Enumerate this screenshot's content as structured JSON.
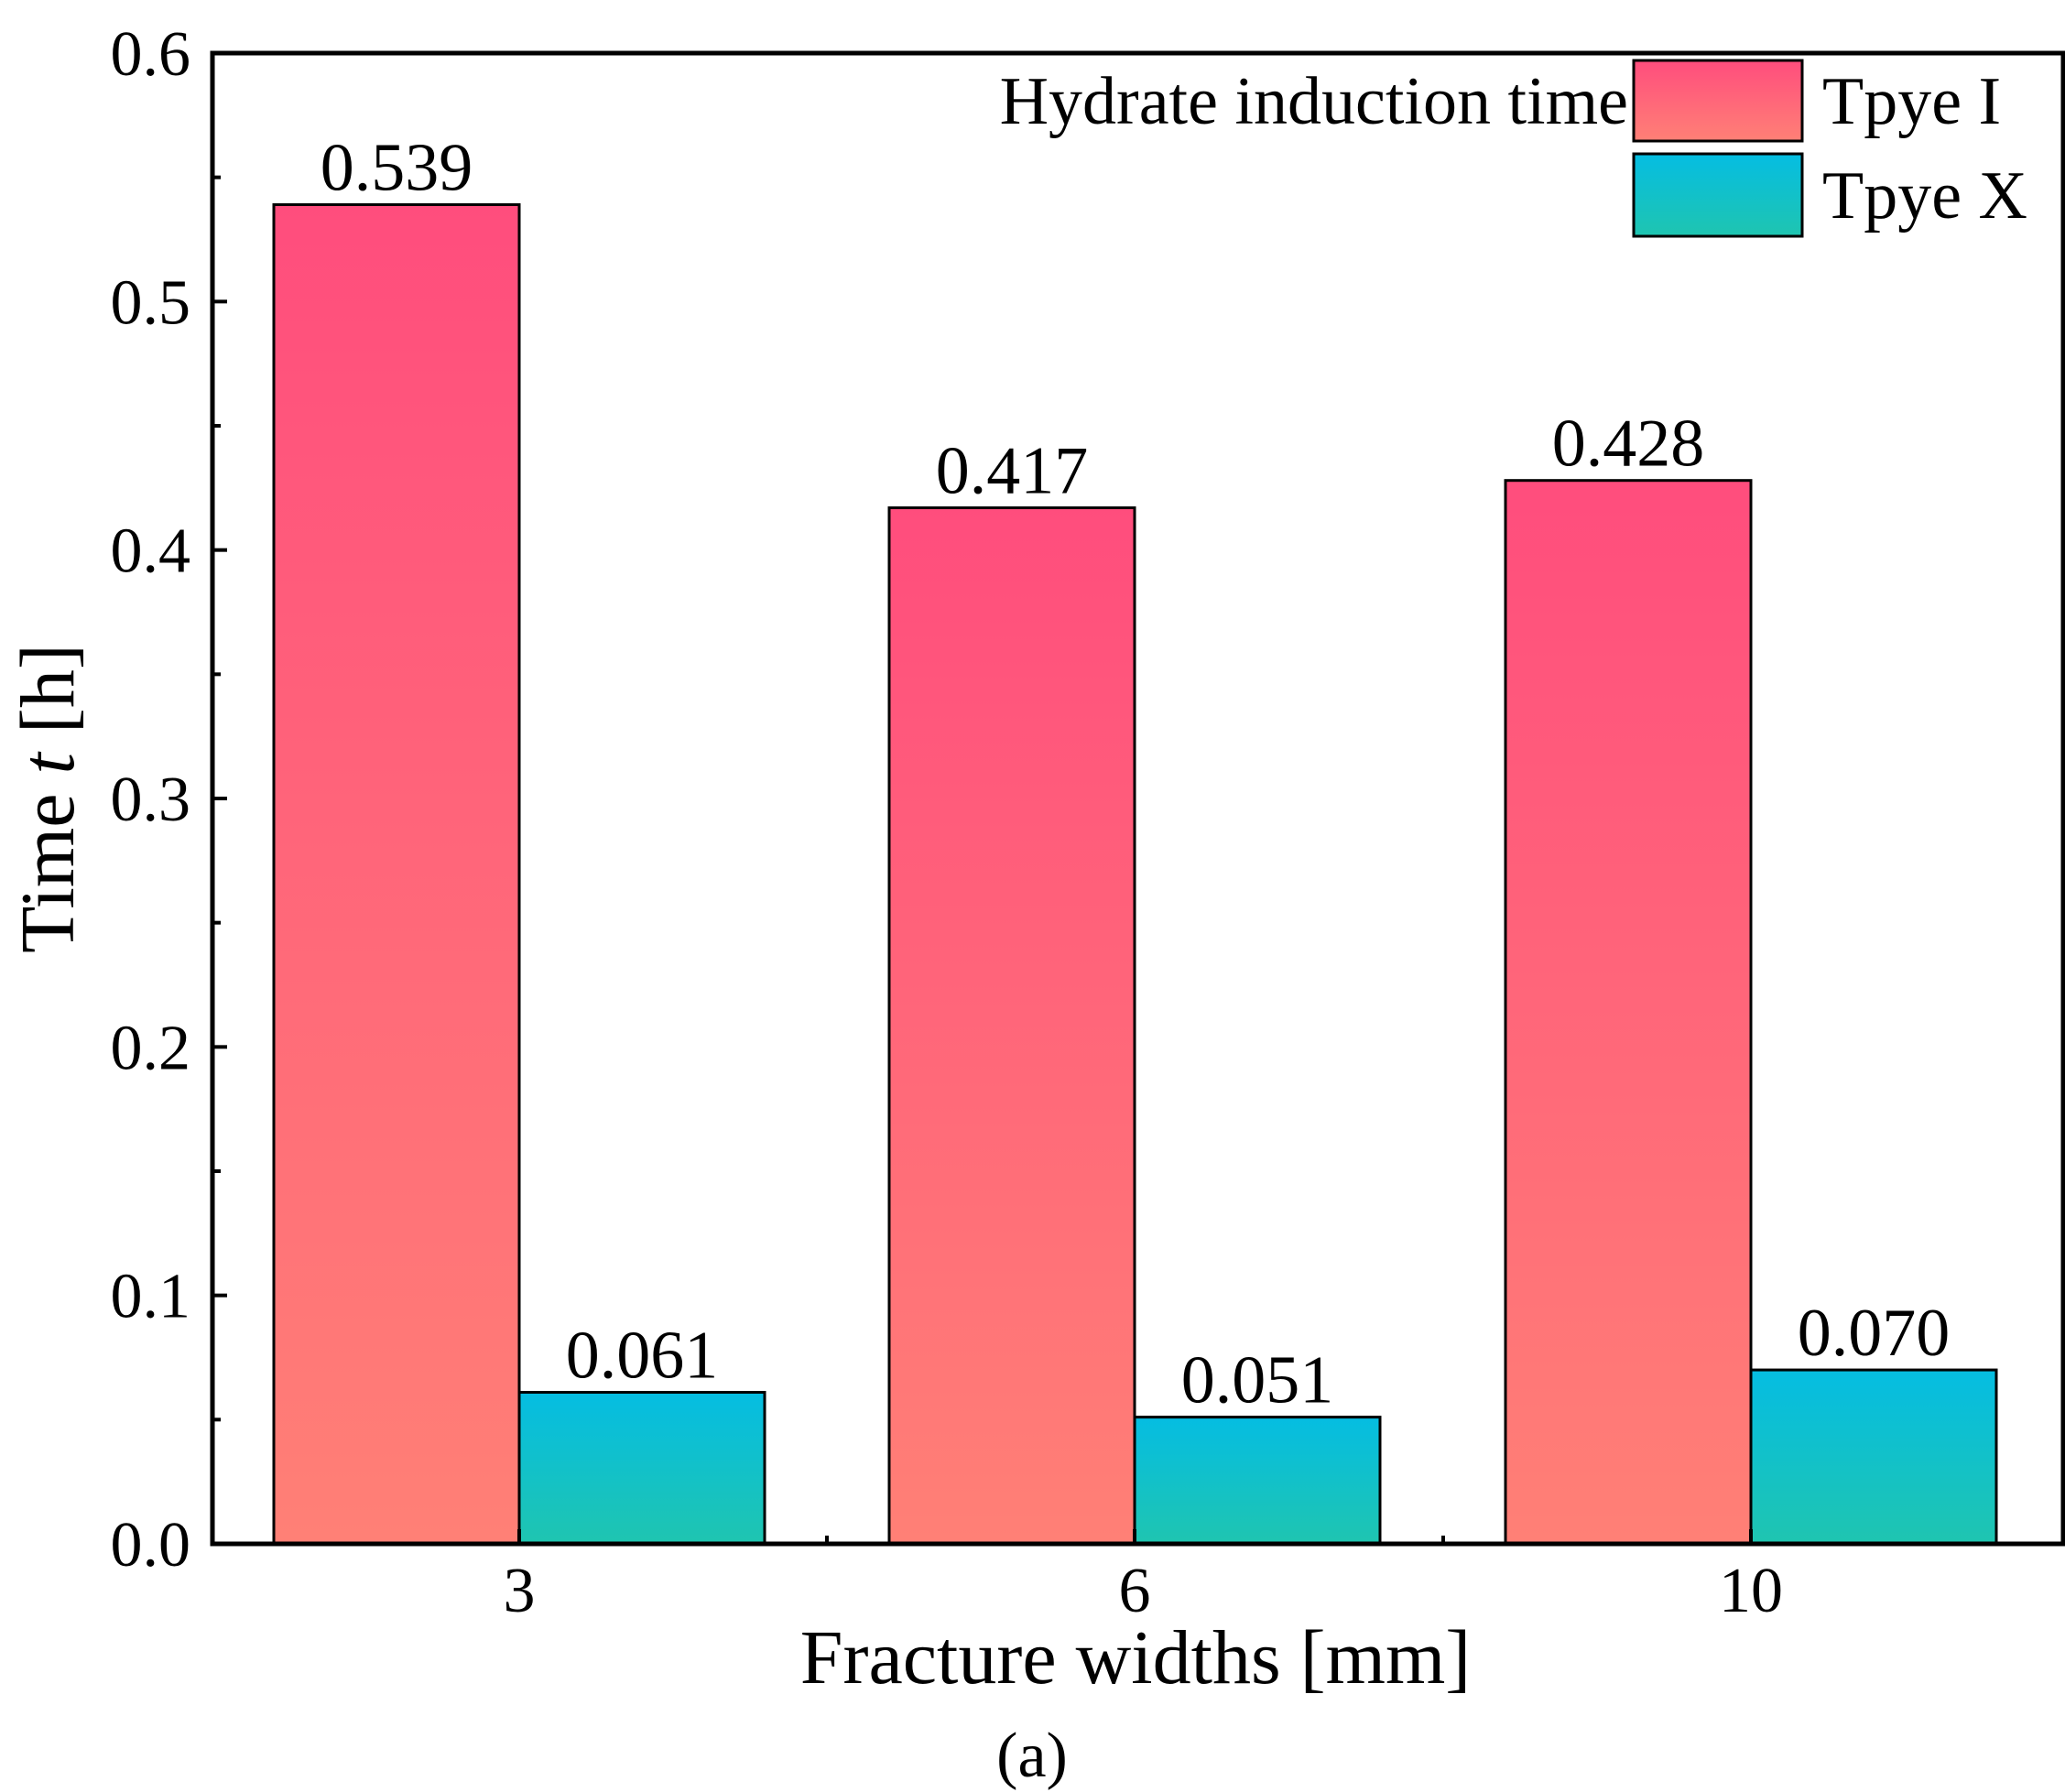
{
  "chart_data": {
    "type": "bar",
    "title": "",
    "xlabel": "Fracture widths [mm]",
    "ylabel_prefix": "Time ",
    "ylabel_var": "t",
    "ylabel_suffix": " [h]",
    "categories": [
      "3",
      "6",
      "10"
    ],
    "ylim": [
      0,
      0.6
    ],
    "yticks": [
      "0.0",
      "0.1",
      "0.2",
      "0.3",
      "0.4",
      "0.5",
      "0.6"
    ],
    "grid": false,
    "legend": {
      "title": "Hydrate induction time",
      "placement": "top-right"
    },
    "series": [
      {
        "name": "Tpye I",
        "values": [
          0.539,
          0.417,
          0.428
        ],
        "labels": [
          "0.539",
          "0.417",
          "0.428"
        ],
        "color_top": "#ff4d7d",
        "color_bottom": "#ff8076"
      },
      {
        "name": "Tpye X",
        "values": [
          0.061,
          0.051,
          0.07
        ],
        "labels": [
          "0.061",
          "0.051",
          "0.070"
        ],
        "color_top": "#05bde2",
        "color_bottom": "#1fc5b0"
      }
    ],
    "panel_label": "(a)"
  }
}
